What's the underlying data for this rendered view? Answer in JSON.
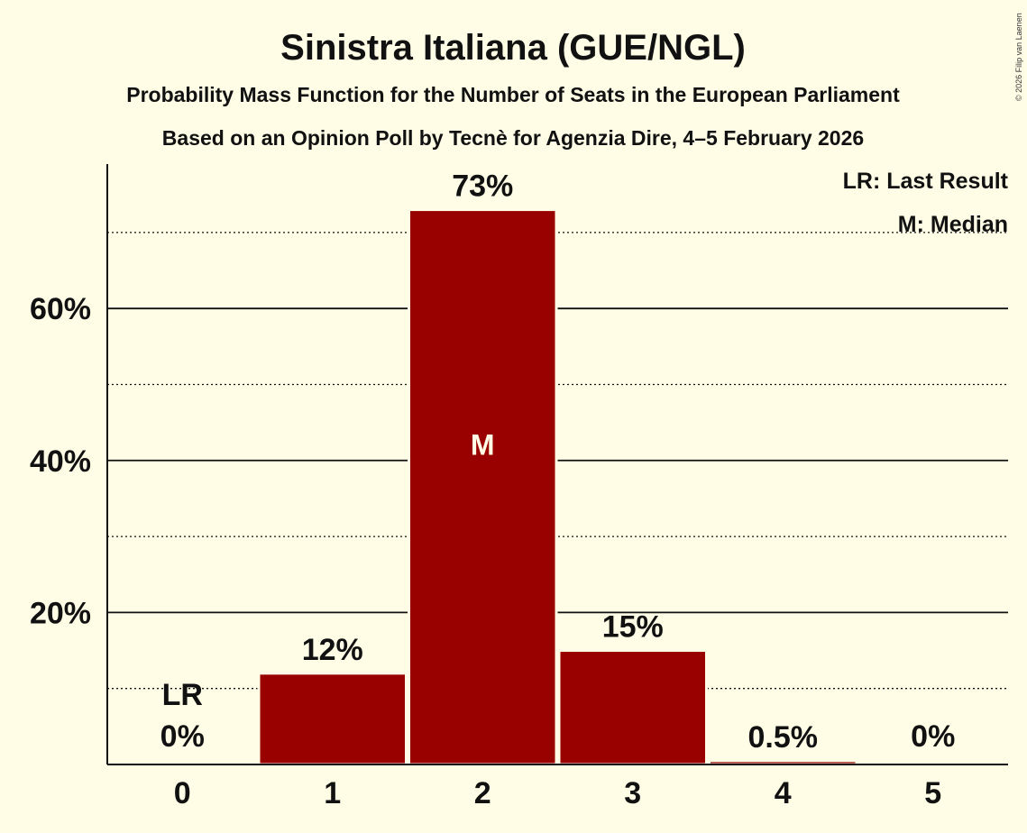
{
  "chart_data": {
    "type": "bar",
    "title": "Sinistra Italiana (GUE/NGL)",
    "subtitle": "Probability Mass Function for the Number of Seats in the European Parliament",
    "subtitle2": "Based on an Opinion Poll by Tecnè for Agenzia Dire, 4–5 February 2026",
    "copyright": "© 2026 Filip van Laenen",
    "categories": [
      "0",
      "1",
      "2",
      "3",
      "4",
      "5"
    ],
    "values": [
      0,
      12,
      73,
      15,
      0.5,
      0
    ],
    "value_labels": [
      "0%",
      "12%",
      "73%",
      "15%",
      "0.5%",
      "0%"
    ],
    "ylim": [
      0,
      79
    ],
    "yticks": [
      20,
      40,
      60
    ],
    "ytick_labels": [
      "20%",
      "40%",
      "60%"
    ],
    "minor_gridlines": [
      10,
      30,
      50,
      70
    ],
    "last_result_category": "0",
    "last_result_marker": "LR",
    "median_category": "2",
    "median_marker": "M",
    "legend": [
      "LR: Last Result",
      "M: Median"
    ],
    "legend_position": "top-right",
    "colors": {
      "bar": "#990000",
      "background": "#fffde6",
      "axis": "#111111"
    }
  }
}
